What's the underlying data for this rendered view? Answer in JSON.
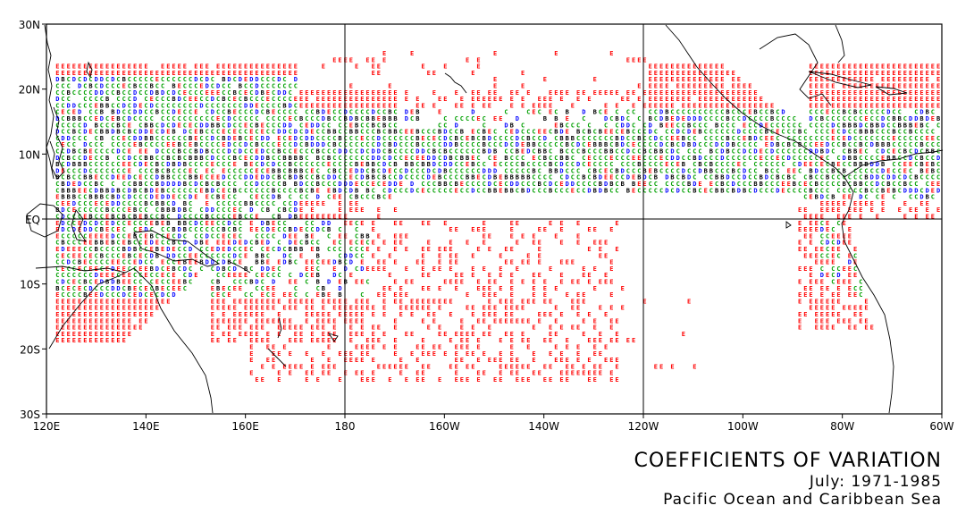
{
  "map": {
    "lat_range": [
      -30,
      30
    ],
    "lon_range": [
      120,
      300
    ],
    "y_ticks": [
      {
        "lat": 30,
        "label": "30N"
      },
      {
        "lat": 20,
        "label": "20N"
      },
      {
        "lat": 10,
        "label": "10N"
      },
      {
        "lat": 0,
        "label": "EQ"
      },
      {
        "lat": -10,
        "label": "10S"
      },
      {
        "lat": -20,
        "label": "20S"
      },
      {
        "lat": -30,
        "label": "30S"
      }
    ],
    "x_ticks": [
      {
        "lon": 120,
        "label": "120E"
      },
      {
        "lon": 140,
        "label": "140E"
      },
      {
        "lon": 160,
        "label": "160E"
      },
      {
        "lon": 180,
        "label": "180"
      },
      {
        "lon": 200,
        "label": "160W"
      },
      {
        "lon": 220,
        "label": "140W"
      },
      {
        "lon": 240,
        "label": "120W"
      },
      {
        "lon": 260,
        "label": "100W"
      },
      {
        "lon": 280,
        "label": "80W"
      },
      {
        "lon": 300,
        "label": "60W"
      }
    ],
    "reference_lines": {
      "meridians": [
        180,
        240
      ],
      "parallels": [
        0
      ]
    },
    "category_colors": {
      "B": "#000000",
      "C": "#00a000",
      "D": "#0000ff",
      "E": "#ff0000"
    }
  },
  "caption": {
    "title": "COEFFICIENTS OF VARIATION",
    "period": "July: 1971-1985",
    "region": "Pacific Ocean and Caribbean Sea"
  }
}
